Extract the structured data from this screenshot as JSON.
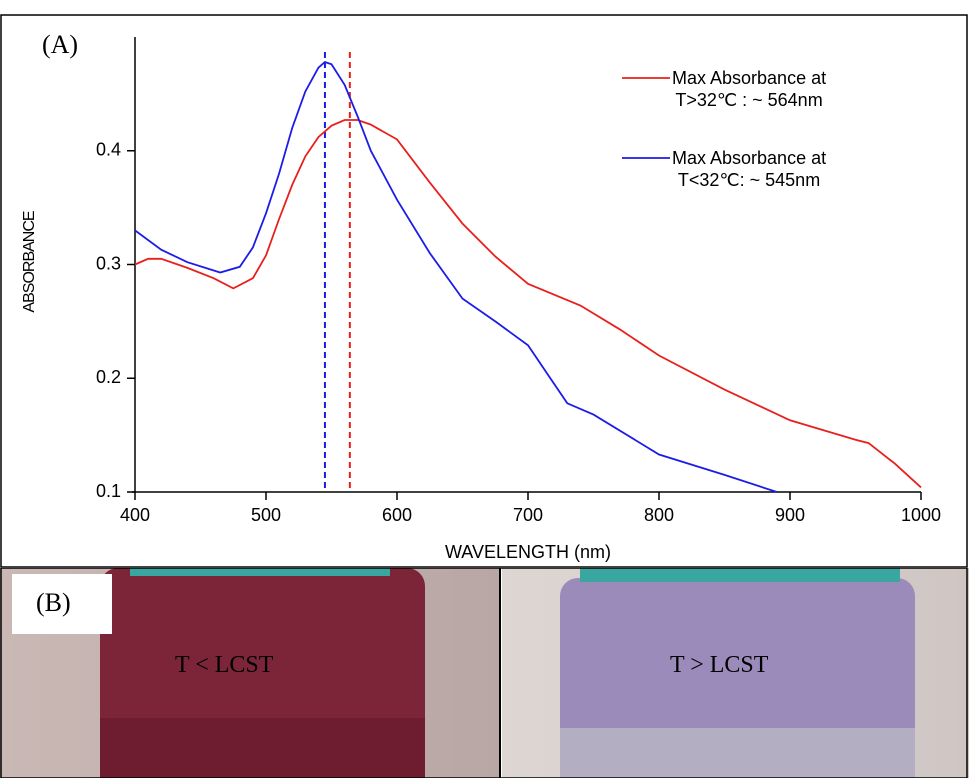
{
  "chart_data": {
    "type": "line",
    "panel_label": "(A)",
    "x_label": "WAVELENGTH (nm)",
    "y_label": "ABSORBANCE",
    "xlim": [
      400,
      1000
    ],
    "xticks": [
      400,
      500,
      600,
      700,
      800,
      900,
      1000
    ],
    "ylim": [
      0.1,
      0.5
    ],
    "yticks": [
      0.1,
      0.2,
      0.3,
      0.4
    ],
    "series": [
      {
        "name": "Max Absorbance at\nT>32℃ : ~ 564nm",
        "color": "#e8201c",
        "x": [
          400,
          410,
          420,
          440,
          460,
          475,
          490,
          500,
          510,
          520,
          530,
          540,
          550,
          560,
          570,
          580,
          600,
          625,
          650,
          675,
          700,
          740,
          770,
          800,
          850,
          900,
          950,
          960,
          980,
          1000
        ],
        "values": [
          0.3,
          0.305,
          0.305,
          0.297,
          0.288,
          0.279,
          0.288,
          0.308,
          0.34,
          0.37,
          0.395,
          0.412,
          0.422,
          0.427,
          0.427,
          0.423,
          0.41,
          0.372,
          0.336,
          0.307,
          0.283,
          0.264,
          0.243,
          0.22,
          0.19,
          0.163,
          0.146,
          0.143,
          0.125,
          0.104
        ]
      },
      {
        "name": "Max Absorbance at\nT<32℃: ~ 545nm",
        "color": "#1c1ce8",
        "x": [
          400,
          420,
          440,
          465,
          480,
          490,
          500,
          510,
          520,
          530,
          540,
          545,
          550,
          560,
          570,
          580,
          600,
          625,
          650,
          675,
          700,
          730,
          750,
          800,
          850,
          890
        ],
        "values": [
          0.33,
          0.313,
          0.302,
          0.293,
          0.298,
          0.315,
          0.345,
          0.38,
          0.42,
          0.452,
          0.473,
          0.478,
          0.476,
          0.458,
          0.43,
          0.4,
          0.357,
          0.31,
          0.27,
          0.25,
          0.229,
          0.178,
          0.168,
          0.133,
          0.115,
          0.1
        ]
      }
    ],
    "vlines": [
      {
        "x": 545,
        "color": "#1c1ce8"
      },
      {
        "x": 564,
        "color": "#e8201c"
      }
    ]
  },
  "photos": {
    "label": "(B)",
    "left": "T < LCST",
    "right": "T > LCST"
  }
}
